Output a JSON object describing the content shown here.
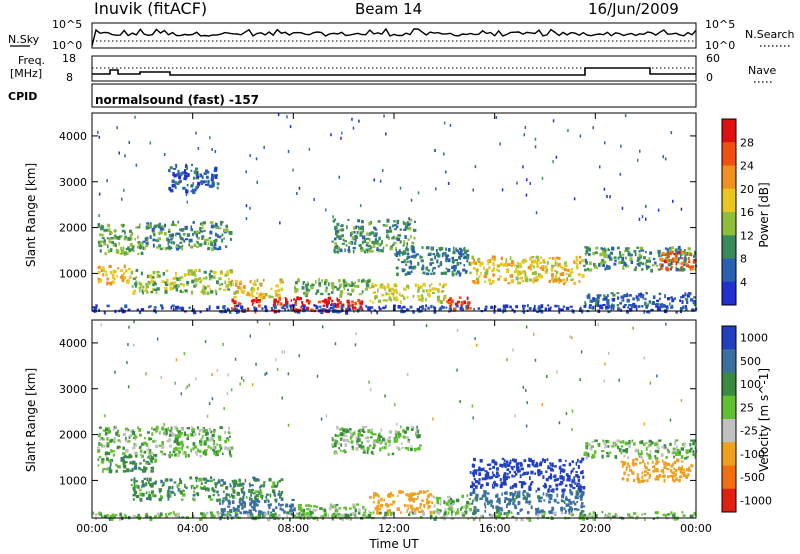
{
  "header": {
    "station": "Inuvik (fitACF)",
    "beam": "Beam 14",
    "date": "16/Jun/2009"
  },
  "noise_panel": {
    "left_label": "N.Sky",
    "right_label": "N.Search",
    "left_ticks": [
      "10^5",
      "10^0"
    ],
    "right_ticks": [
      "10^5",
      "10^0"
    ]
  },
  "freq_panel": {
    "left_label_line1": "Freq.",
    "left_label_line2": "[MHz]",
    "right_label": "Nave",
    "left_ticks": [
      "18",
      "8"
    ],
    "right_ticks": [
      "60",
      "0"
    ]
  },
  "cpid_panel": {
    "label": "CPID",
    "mode": "normalsound (fast) -157"
  },
  "colors": {
    "power": [
      "#2030d0",
      "#2a60b0",
      "#3a8a5a",
      "#8fbf3a",
      "#e8c820",
      "#f09020",
      "#f05010",
      "#e01010"
    ],
    "velocity": [
      "#2040c0",
      "#3a70a0",
      "#3a8a40",
      "#60c030",
      "#c0c0c0",
      "#f0a020",
      "#f07010",
      "#e02010"
    ]
  },
  "chart_data": [
    {
      "type": "heatmap",
      "title": "",
      "xlabel": "",
      "ylabel": "Slant Range [km]",
      "x_ticks": [
        "00:00",
        "04:00",
        "08:00",
        "12:00",
        "16:00",
        "20:00",
        "00:00"
      ],
      "y_ticks": [
        "1000",
        "2000",
        "3000",
        "4000"
      ],
      "xlim_hours": [
        0,
        24
      ],
      "ylim_km": [
        180,
        4500
      ],
      "colorbar": {
        "label": "Power [dB]",
        "ticks": [
          "4",
          "8",
          "12",
          "16",
          "20",
          "24",
          "28"
        ],
        "range": [
          0,
          32
        ]
      },
      "regions": [
        {
          "t": [
            0.2,
            2.0
          ],
          "r": [
            1450,
            2100
          ],
          "level": 12
        },
        {
          "t": [
            2.0,
            5.5
          ],
          "r": [
            1550,
            2150
          ],
          "level": 10
        },
        {
          "t": [
            0.2,
            1.5
          ],
          "r": [
            800,
            1200
          ],
          "level": 20
        },
        {
          "t": [
            1.5,
            5.5
          ],
          "r": [
            600,
            1100
          ],
          "level": 14
        },
        {
          "t": [
            5.5,
            7.5
          ],
          "r": [
            500,
            900
          ],
          "level": 18
        },
        {
          "t": [
            5.5,
            6.6
          ],
          "r": [
            200,
            500
          ],
          "level": 30
        },
        {
          "t": [
            7.0,
            10.8
          ],
          "r": [
            200,
            500
          ],
          "level": 30
        },
        {
          "t": [
            8.0,
            11.0
          ],
          "r": [
            550,
            900
          ],
          "level": 12
        },
        {
          "t": [
            9.5,
            12.8
          ],
          "r": [
            1500,
            2200
          ],
          "level": 10
        },
        {
          "t": [
            11.0,
            14.0
          ],
          "r": [
            400,
            800
          ],
          "level": 16
        },
        {
          "t": [
            12.0,
            15.0
          ],
          "r": [
            1000,
            1600
          ],
          "level": 8
        },
        {
          "t": [
            14.0,
            15.0
          ],
          "r": [
            200,
            500
          ],
          "level": 28
        },
        {
          "t": [
            15.0,
            19.5
          ],
          "r": [
            800,
            1400
          ],
          "level": 18
        },
        {
          "t": [
            19.5,
            24.0
          ],
          "r": [
            1100,
            1600
          ],
          "level": 10
        },
        {
          "t": [
            19.5,
            24.0
          ],
          "r": [
            300,
            600
          ],
          "level": 6
        },
        {
          "t": [
            22.5,
            24.0
          ],
          "r": [
            1100,
            1500
          ],
          "level": 26
        },
        {
          "t": [
            3.0,
            5.0
          ],
          "r": [
            2800,
            3400
          ],
          "level": 6
        },
        {
          "t": [
            0.0,
            24.0
          ],
          "r": [
            180,
            330
          ],
          "level": 4
        }
      ]
    },
    {
      "type": "heatmap",
      "title": "",
      "xlabel": "Time UT",
      "ylabel": "Slant Range [km]",
      "x_ticks": [
        "00:00",
        "04:00",
        "08:00",
        "12:00",
        "16:00",
        "20:00",
        "00:00"
      ],
      "y_ticks": [
        "1000",
        "2000",
        "3000",
        "4000"
      ],
      "xlim_hours": [
        0,
        24
      ],
      "ylim_km": [
        180,
        4500
      ],
      "colorbar": {
        "label": "Velocity [m s^-1]",
        "ticks": [
          "1000",
          "500",
          "100",
          "25",
          "-25",
          "-100",
          "-500",
          "-1000"
        ],
        "range": [
          -1000,
          1000
        ]
      },
      "regions": [
        {
          "t": [
            0.2,
            5.5
          ],
          "r": [
            1550,
            2200
          ],
          "level": 0
        },
        {
          "t": [
            0.2,
            2.5
          ],
          "r": [
            1200,
            1550
          ],
          "level": 60
        },
        {
          "t": [
            1.5,
            7.5
          ],
          "r": [
            600,
            1100
          ],
          "level": 60
        },
        {
          "t": [
            5.0,
            8.0
          ],
          "r": [
            200,
            600
          ],
          "level": 200
        },
        {
          "t": [
            8.0,
            11.0
          ],
          "r": [
            200,
            500
          ],
          "level": 0
        },
        {
          "t": [
            9.5,
            13.0
          ],
          "r": [
            1600,
            2200
          ],
          "level": 0
        },
        {
          "t": [
            11.0,
            13.5
          ],
          "r": [
            300,
            800
          ],
          "level": -300
        },
        {
          "t": [
            13.5,
            15.5
          ],
          "r": [
            300,
            700
          ],
          "level": 0
        },
        {
          "t": [
            15.0,
            19.5
          ],
          "r": [
            800,
            1500
          ],
          "level": 800
        },
        {
          "t": [
            15.0,
            19.5
          ],
          "r": [
            300,
            800
          ],
          "level": 150
        },
        {
          "t": [
            19.5,
            24.0
          ],
          "r": [
            1500,
            1900
          ],
          "level": 0
        },
        {
          "t": [
            21.0,
            23.8
          ],
          "r": [
            1000,
            1500
          ],
          "level": -300
        },
        {
          "t": [
            0.0,
            24.0
          ],
          "r": [
            180,
            330
          ],
          "level": 0
        }
      ]
    }
  ]
}
